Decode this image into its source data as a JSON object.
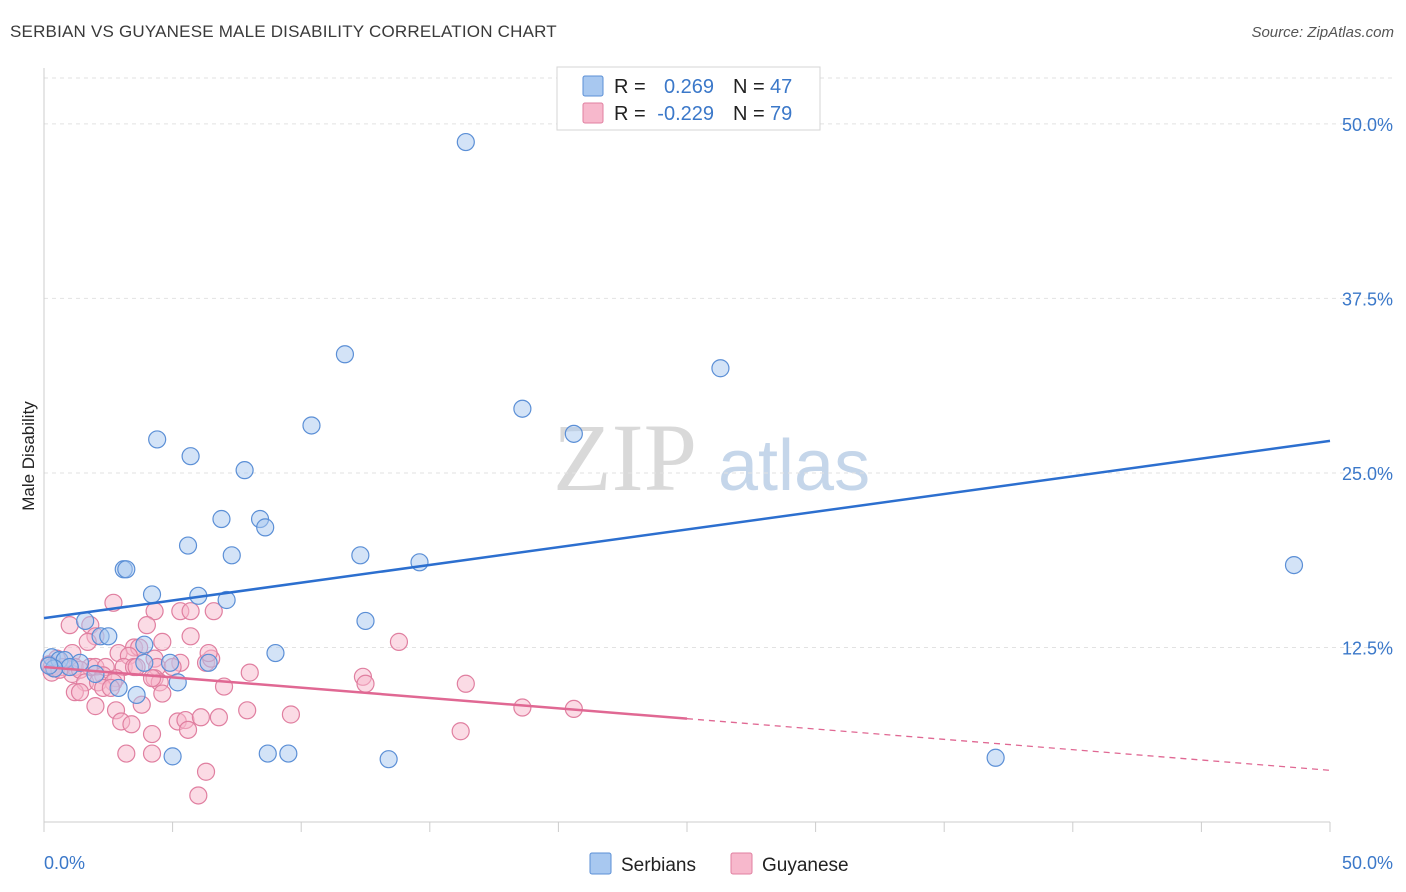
{
  "title": "SERBIAN VS GUYANESE MALE DISABILITY CORRELATION CHART",
  "source": "Source: ZipAtlas.com",
  "watermark": {
    "zip": "ZIP",
    "atlas": "atlas"
  },
  "colors": {
    "serbians_fill": "#a8c8f0",
    "serbians_stroke": "#5b8fd6",
    "serbians_line": "#2c6fcf",
    "guyanese_fill": "#f7b8cc",
    "guyanese_stroke": "#e07fa0",
    "guyanese_line": "#e06893",
    "tick_text": "#3b78c9"
  },
  "legend_top": [
    {
      "r_label": "R =",
      "r_value": "0.269",
      "n_label": "N =",
      "n_value": "47"
    },
    {
      "r_label": "R =",
      "r_value": "-0.229",
      "n_label": "N =",
      "n_value": "79"
    }
  ],
  "legend_bottom": [
    {
      "label": "Serbians"
    },
    {
      "label": "Guyanese"
    }
  ],
  "chart_data": {
    "type": "scatter",
    "title": "SERBIAN VS GUYANESE MALE DISABILITY CORRELATION CHART",
    "xlabel": "",
    "ylabel": "Male Disability",
    "xlim": [
      0,
      50
    ],
    "ylim": [
      0,
      53
    ],
    "x_tick_labels": [
      "0.0%",
      "50.0%"
    ],
    "y_ticks": [
      12.5,
      25.0,
      37.5,
      50.0
    ],
    "y_tick_labels": [
      "12.5%",
      "25.0%",
      "37.5%",
      "50.0%"
    ],
    "series": [
      {
        "name": "Serbians",
        "R": 0.269,
        "N": 47,
        "trend": {
          "x": [
            0,
            50
          ],
          "y": [
            14.6,
            27.3
          ]
        },
        "points": [
          [
            16.4,
            48.7
          ],
          [
            11.7,
            33.5
          ],
          [
            26.3,
            32.5
          ],
          [
            10.4,
            28.4
          ],
          [
            18.6,
            29.6
          ],
          [
            20.6,
            27.8
          ],
          [
            4.4,
            27.4
          ],
          [
            5.7,
            26.2
          ],
          [
            7.8,
            25.2
          ],
          [
            6.9,
            21.7
          ],
          [
            8.4,
            21.7
          ],
          [
            8.6,
            21.1
          ],
          [
            5.6,
            19.8
          ],
          [
            7.3,
            19.1
          ],
          [
            12.3,
            19.1
          ],
          [
            14.6,
            18.6
          ],
          [
            3.1,
            18.1
          ],
          [
            3.2,
            18.1
          ],
          [
            48.6,
            18.4
          ],
          [
            4.2,
            16.3
          ],
          [
            6.0,
            16.2
          ],
          [
            7.1,
            15.9
          ],
          [
            12.5,
            14.4
          ],
          [
            1.6,
            14.4
          ],
          [
            2.2,
            13.3
          ],
          [
            2.5,
            13.3
          ],
          [
            3.9,
            12.7
          ],
          [
            9.0,
            12.1
          ],
          [
            0.3,
            11.8
          ],
          [
            0.6,
            11.6
          ],
          [
            0.8,
            11.6
          ],
          [
            1.4,
            11.4
          ],
          [
            3.9,
            11.4
          ],
          [
            4.9,
            11.4
          ],
          [
            6.4,
            11.4
          ],
          [
            1.0,
            11.1
          ],
          [
            2.0,
            10.6
          ],
          [
            0.4,
            11.0
          ],
          [
            5.2,
            10.0
          ],
          [
            2.9,
            9.6
          ],
          [
            3.6,
            9.1
          ],
          [
            5.0,
            4.7
          ],
          [
            8.7,
            4.9
          ],
          [
            9.5,
            4.9
          ],
          [
            13.4,
            4.5
          ],
          [
            37.0,
            4.6
          ],
          [
            0.2,
            11.2
          ]
        ]
      },
      {
        "name": "Guyanese",
        "R": -0.229,
        "N": 79,
        "trend": {
          "x": [
            0,
            25
          ],
          "y": [
            11.1,
            7.4
          ]
        },
        "trend_dashed": {
          "x": [
            25,
            50
          ],
          "y": [
            7.4,
            3.7
          ]
        },
        "points": [
          [
            2.7,
            15.7
          ],
          [
            4.3,
            15.1
          ],
          [
            5.3,
            15.1
          ],
          [
            5.7,
            15.1
          ],
          [
            6.6,
            15.1
          ],
          [
            1.0,
            14.1
          ],
          [
            1.8,
            14.1
          ],
          [
            4.0,
            14.1
          ],
          [
            2.0,
            13.3
          ],
          [
            5.7,
            13.3
          ],
          [
            1.7,
            12.9
          ],
          [
            3.5,
            12.5
          ],
          [
            3.7,
            12.5
          ],
          [
            4.6,
            12.9
          ],
          [
            13.8,
            12.9
          ],
          [
            1.1,
            12.1
          ],
          [
            2.9,
            12.1
          ],
          [
            3.3,
            11.9
          ],
          [
            4.3,
            11.7
          ],
          [
            5.3,
            11.4
          ],
          [
            6.3,
            11.4
          ],
          [
            6.5,
            11.7
          ],
          [
            6.4,
            12.1
          ],
          [
            0.5,
            11.7
          ],
          [
            0.7,
            11.1
          ],
          [
            1.2,
            11.1
          ],
          [
            1.8,
            11.1
          ],
          [
            2.0,
            11.1
          ],
          [
            2.4,
            11.1
          ],
          [
            3.1,
            11.1
          ],
          [
            3.5,
            11.1
          ],
          [
            3.6,
            11.1
          ],
          [
            4.4,
            11.1
          ],
          [
            5.0,
            11.1
          ],
          [
            0.3,
            10.7
          ],
          [
            1.1,
            10.6
          ],
          [
            1.4,
            10.9
          ],
          [
            2.3,
            10.5
          ],
          [
            2.8,
            10.3
          ],
          [
            4.3,
            10.3
          ],
          [
            8.0,
            10.7
          ],
          [
            12.4,
            10.4
          ],
          [
            1.6,
            10.0
          ],
          [
            2.1,
            10.0
          ],
          [
            2.7,
            10.0
          ],
          [
            4.5,
            10.0
          ],
          [
            4.2,
            10.3
          ],
          [
            7.0,
            9.7
          ],
          [
            12.5,
            9.9
          ],
          [
            16.4,
            9.9
          ],
          [
            1.2,
            9.3
          ],
          [
            1.4,
            9.3
          ],
          [
            2.3,
            9.6
          ],
          [
            2.6,
            9.6
          ],
          [
            4.6,
            9.2
          ],
          [
            2.0,
            8.3
          ],
          [
            2.8,
            8.0
          ],
          [
            3.8,
            8.4
          ],
          [
            7.9,
            8.0
          ],
          [
            18.6,
            8.2
          ],
          [
            20.6,
            8.1
          ],
          [
            3.0,
            7.2
          ],
          [
            5.2,
            7.2
          ],
          [
            5.5,
            7.3
          ],
          [
            6.1,
            7.5
          ],
          [
            6.8,
            7.5
          ],
          [
            9.6,
            7.7
          ],
          [
            3.4,
            7.0
          ],
          [
            4.2,
            6.3
          ],
          [
            5.6,
            6.6
          ],
          [
            16.2,
            6.5
          ],
          [
            3.2,
            4.9
          ],
          [
            4.2,
            4.9
          ],
          [
            6.3,
            3.6
          ],
          [
            6.0,
            1.9
          ],
          [
            0.2,
            11.3
          ],
          [
            0.3,
            11.1
          ],
          [
            0.4,
            11.0
          ],
          [
            0.6,
            10.9
          ]
        ]
      }
    ]
  }
}
